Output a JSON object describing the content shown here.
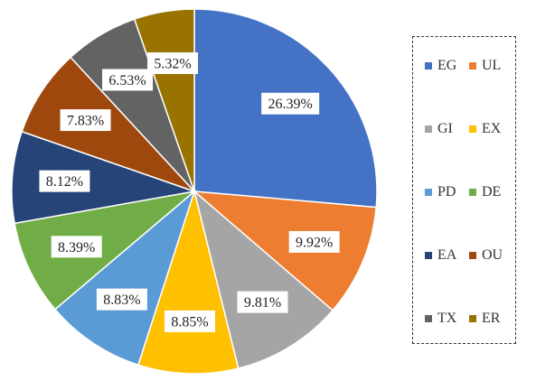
{
  "chart_data": {
    "type": "pie",
    "title": "",
    "slices": [
      {
        "name": "EG",
        "value": 26.39,
        "label": "26.39%",
        "color": "#4472C4"
      },
      {
        "name": "UL",
        "value": 9.92,
        "label": "9.92%",
        "color": "#ED7D31"
      },
      {
        "name": "GI",
        "value": 9.81,
        "label": "9.81%",
        "color": "#A5A5A5"
      },
      {
        "name": "EX",
        "value": 8.85,
        "label": "8.85%",
        "color": "#FFC000"
      },
      {
        "name": "PD",
        "value": 8.83,
        "label": "8.83%",
        "color": "#5B9BD5"
      },
      {
        "name": "DE",
        "value": 8.39,
        "label": "8.39%",
        "color": "#70AD47"
      },
      {
        "name": "EA",
        "value": 8.12,
        "label": "8.12%",
        "color": "#264478"
      },
      {
        "name": "OU",
        "value": 7.83,
        "label": "7.83%",
        "color": "#9E480E"
      },
      {
        "name": "TX",
        "value": 6.53,
        "label": "6.53%",
        "color": "#636363"
      },
      {
        "name": "ER",
        "value": 5.32,
        "label": "5.32%",
        "color": "#997300"
      }
    ],
    "legend": {
      "placement": "right",
      "columns": 2,
      "border": "dashed"
    }
  }
}
